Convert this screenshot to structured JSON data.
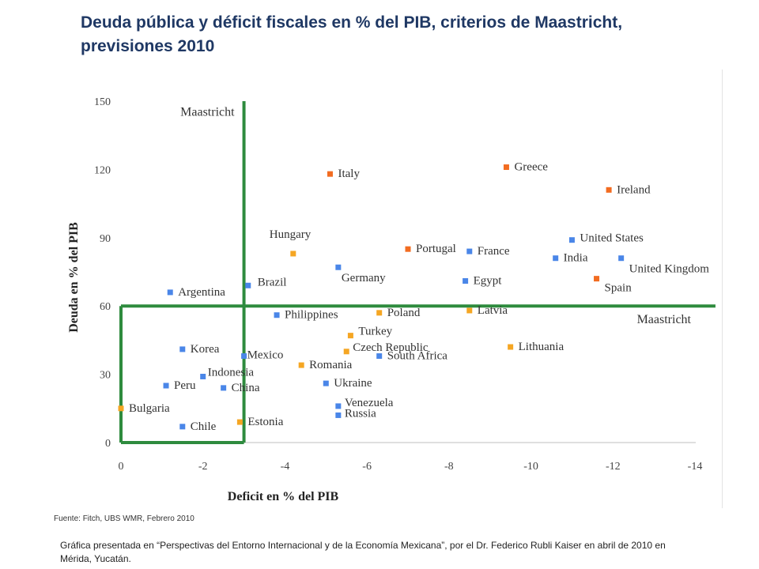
{
  "page": {
    "title": "Deuda pública y déficit fiscales en % del PIB, criterios de Maastricht, previsiones 2010",
    "source": "Fuente: Fitch, UBS WMR, Febrero 2010",
    "footnote": "Gráfica presentada en “Perspectivas del Entorno Internacional y de la Economía Mexicana”, por el Dr. Federico Rubli Kaiser en abril de 2010 en Mérida, Yucatán."
  },
  "chart_data": {
    "type": "scatter",
    "title": "Deuda pública y déficit fiscales en % del PIB, criterios de Maastricht, previsiones 2010",
    "xlabel": "Deficit en % del PIB",
    "ylabel": "Deuda en % del PIB",
    "xlim": [
      0,
      -14
    ],
    "ylim": [
      0,
      150
    ],
    "xticks": [
      0,
      -2,
      -4,
      -6,
      -8,
      -10,
      -12,
      -14
    ],
    "xtick_labels": [
      "0",
      "-2",
      "-4",
      "-6",
      "-8",
      "-10",
      "-12",
      "-14"
    ],
    "yticks": [
      0,
      30,
      60,
      90,
      120,
      150
    ],
    "ytick_labels": [
      "0",
      "30",
      "60",
      "90",
      "120",
      "150"
    ],
    "colors": {
      "blue": "#4a86e8",
      "orange": "#f5a623",
      "red_orange": "#f26c21",
      "maastricht_line": "#2e8b3e"
    },
    "maastricht": {
      "deficit_limit": -3,
      "debt_limit": 60,
      "vertical_label": "Maastricht",
      "horizontal_label": "Maastricht"
    },
    "series": [
      {
        "name": "blue",
        "color": "#4a86e8",
        "points": [
          {
            "label": "Argentina",
            "x": -1.2,
            "y": 66
          },
          {
            "label": "Brazil",
            "x": -3.1,
            "y": 69
          },
          {
            "label": "Germany",
            "x": -5.3,
            "y": 77
          },
          {
            "label": "Philippines",
            "x": -3.8,
            "y": 56
          },
          {
            "label": "Korea",
            "x": -1.5,
            "y": 41
          },
          {
            "label": "Mexico",
            "x": -3.0,
            "y": 38
          },
          {
            "label": "Indonesia",
            "x": -2.0,
            "y": 29
          },
          {
            "label": "Peru",
            "x": -1.1,
            "y": 25
          },
          {
            "label": "China",
            "x": -2.5,
            "y": 24
          },
          {
            "label": "Chile",
            "x": -1.5,
            "y": 7
          },
          {
            "label": "South Africa",
            "x": -6.3,
            "y": 38
          },
          {
            "label": "Ukraine",
            "x": -5.0,
            "y": 26
          },
          {
            "label": "Venezuela",
            "x": -5.3,
            "y": 16
          },
          {
            "label": "Russia",
            "x": -5.3,
            "y": 12
          },
          {
            "label": "France",
            "x": -8.5,
            "y": 84
          },
          {
            "label": "Egypt",
            "x": -8.4,
            "y": 71
          },
          {
            "label": "United States",
            "x": -11.0,
            "y": 89
          },
          {
            "label": "India",
            "x": -10.6,
            "y": 81
          },
          {
            "label": "United Kingdom",
            "x": -12.2,
            "y": 81
          }
        ]
      },
      {
        "name": "orange",
        "color": "#f5a623",
        "points": [
          {
            "label": "Hungary",
            "x": -4.2,
            "y": 83
          },
          {
            "label": "Poland",
            "x": -6.3,
            "y": 57
          },
          {
            "label": "Latvia",
            "x": -8.5,
            "y": 58
          },
          {
            "label": "Turkey",
            "x": -5.6,
            "y": 47
          },
          {
            "label": "Czech Republic",
            "x": -5.5,
            "y": 40
          },
          {
            "label": "Romania",
            "x": -4.4,
            "y": 34
          },
          {
            "label": "Lithuania",
            "x": -9.5,
            "y": 42
          },
          {
            "label": "Bulgaria",
            "x": 0.0,
            "y": 15
          },
          {
            "label": "Estonia",
            "x": -2.9,
            "y": 9
          }
        ]
      },
      {
        "name": "red_orange",
        "color": "#f26c21",
        "points": [
          {
            "label": "Italy",
            "x": -5.1,
            "y": 118
          },
          {
            "label": "Greece",
            "x": -9.4,
            "y": 121
          },
          {
            "label": "Ireland",
            "x": -11.9,
            "y": 111
          },
          {
            "label": "Portugal",
            "x": -7.0,
            "y": 85
          },
          {
            "label": "Spain",
            "x": -11.6,
            "y": 72
          }
        ]
      }
    ]
  }
}
